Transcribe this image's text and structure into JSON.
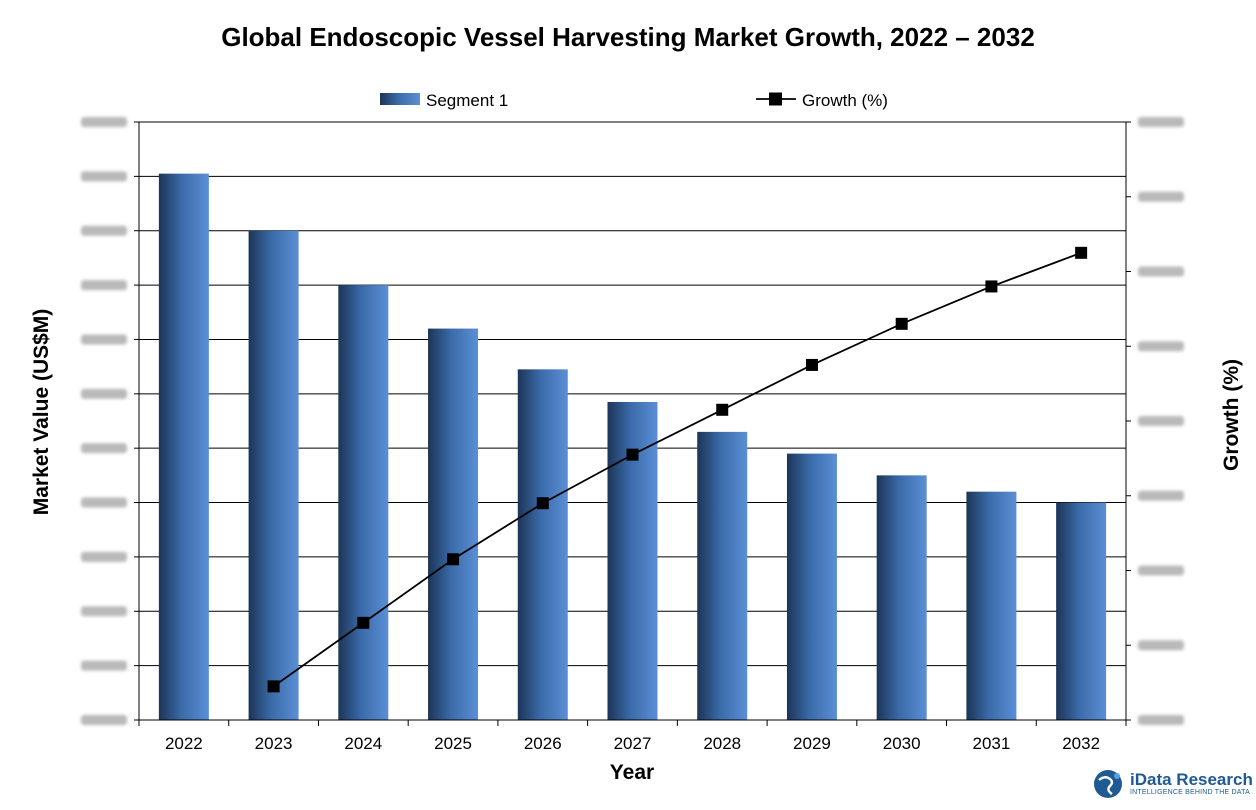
{
  "chart_data": {
    "type": "bar",
    "title": "Global Endoscopic Vessel Harvesting Market Growth, 2022 – 2032",
    "xlabel": "Year",
    "ylabel": "Market Value (US$M)",
    "y2label": "Growth (%)",
    "categories": [
      "2022",
      "2023",
      "2024",
      "2025",
      "2026",
      "2027",
      "2028",
      "2029",
      "2030",
      "2031",
      "2032"
    ],
    "ylim": [
      0,
      11
    ],
    "y2lim": [
      0,
      8
    ],
    "grid": true,
    "legend_position": "top",
    "series": [
      {
        "name": "Segment 1",
        "type": "bar",
        "axis": "left",
        "values": [
          10.05,
          9.0,
          8.0,
          7.2,
          6.45,
          5.85,
          5.3,
          4.9,
          4.5,
          4.2,
          4.0
        ]
      },
      {
        "name": "Growth (%)",
        "type": "line",
        "axis": "right",
        "values": [
          null,
          0.45,
          1.3,
          2.15,
          2.9,
          3.55,
          4.15,
          4.75,
          5.3,
          5.8,
          6.25
        ]
      }
    ],
    "colors": {
      "bar_dark": "#1c3557",
      "bar_light": "#5b8fd6",
      "line": "#000000",
      "grid": "#000000"
    }
  },
  "logo": {
    "name": "iData Research",
    "tagline": "INTELLIGENCE BEHIND THE DATA"
  }
}
